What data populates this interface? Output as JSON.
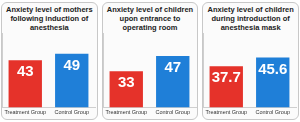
{
  "chart_data": [
    {
      "type": "bar",
      "title": "Anxiety level of mothers following induction of anesthesia",
      "categories": [
        "Treatment Group",
        "Control Group"
      ],
      "values": [
        43,
        49
      ],
      "colors": [
        "#e5322a",
        "#1f7fd8"
      ],
      "ylim": [
        0,
        68
      ],
      "grid": false,
      "data_labels": true,
      "tick_labels": "x"
    },
    {
      "type": "bar",
      "title": "Anxiety level of children upon entrance to operating room",
      "categories": [
        "Treatment Group",
        "Control Group"
      ],
      "values": [
        33,
        47
      ],
      "colors": [
        "#e5322a",
        "#1f7fd8"
      ],
      "ylim": [
        0,
        68
      ],
      "grid": false,
      "data_labels": true,
      "tick_labels": "x"
    },
    {
      "type": "bar",
      "title": "Anxiety level of children during introduction of anesthesia mask",
      "categories": [
        "Treatment Group",
        "Control Group"
      ],
      "values": [
        37.7,
        45.6
      ],
      "colors": [
        "#e5322a",
        "#1f7fd8"
      ],
      "ylim": [
        0,
        68
      ],
      "grid": false,
      "data_labels": true,
      "tick_labels": "x"
    }
  ]
}
